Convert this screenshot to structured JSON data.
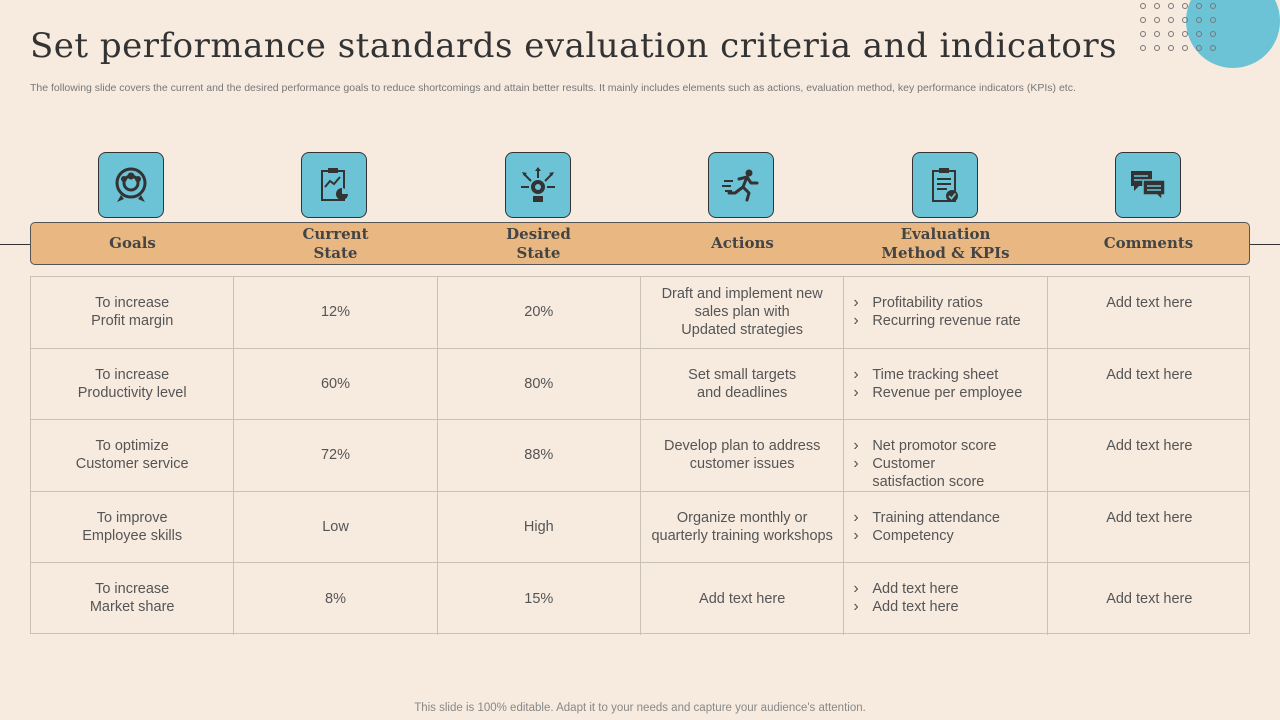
{
  "title": "Set performance standards evaluation criteria and indicators",
  "subtitle": "The following slide covers the current and the desired performance goals to reduce shortcomings and attain better results. It mainly includes elements such as actions, evaluation method, key performance indicators (KPIs) etc.",
  "colors": {
    "background": "#f7ebe0",
    "header": "#e9b882",
    "icon_box": "#6cc3d6"
  },
  "headers": [
    {
      "label": "Goals",
      "icon": "target-group-icon"
    },
    {
      "label": "Current\nState",
      "icon": "clipboard-chart-icon"
    },
    {
      "label": "Desired\nState",
      "icon": "idea-head-icon"
    },
    {
      "label": "Actions",
      "icon": "running-person-icon"
    },
    {
      "label": "Evaluation\nMethod & KPIs",
      "icon": "checklist-icon"
    },
    {
      "label": "Comments",
      "icon": "chat-bubbles-icon"
    }
  ],
  "rows": [
    {
      "goal": "To increase\nProfit margin",
      "current": "12%",
      "desired": "20%",
      "action": "Draft and implement new\nsales plan with\nUpdated strategies",
      "kpis": [
        "Profitability ratios",
        "Recurring revenue rate"
      ],
      "comment": "Add text here"
    },
    {
      "goal": "To increase\nProductivity level",
      "current": "60%",
      "desired": "80%",
      "action": "Set small targets\nand deadlines",
      "kpis": [
        "Time tracking sheet",
        "Revenue per employee"
      ],
      "comment": "Add text here"
    },
    {
      "goal": "To optimize\nCustomer service",
      "current": "72%",
      "desired": "88%",
      "action": "Develop plan to address\ncustomer issues",
      "kpis": [
        "Net promotor score",
        "Customer\nsatisfaction score"
      ],
      "comment": "Add text here"
    },
    {
      "goal": "To improve\nEmployee skills",
      "current": "Low",
      "desired": "High",
      "action": "Organize monthly or\nquarterly training workshops",
      "kpis": [
        "Training attendance",
        "Competency"
      ],
      "comment": "Add text here"
    },
    {
      "goal": "To increase\nMarket share",
      "current": "8%",
      "desired": "15%",
      "action": "Add text here",
      "kpis": [
        "Add text here",
        "Add text here"
      ],
      "comment": "Add text here"
    }
  ],
  "footer": "This slide is 100% editable. Adapt it to your needs and capture your audience's attention."
}
